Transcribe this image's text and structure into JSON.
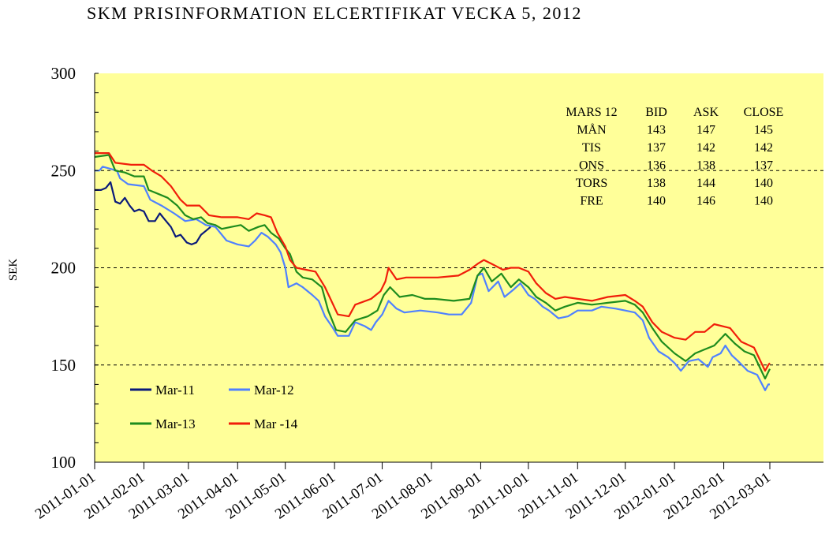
{
  "chart_data": {
    "type": "line",
    "title": "SKM PRISINFORMATION ELCERTIFIKAT VECKA 5, 2012",
    "ylabel": "SEK",
    "xlabel": "",
    "ylim": [
      100,
      300
    ],
    "yticks": [
      "100",
      "150",
      "200",
      "250",
      "300"
    ],
    "xticks": [
      "2011-01-01",
      "2011-02-01",
      "2011-03-01",
      "2011-04-01",
      "2011-05-01",
      "2011-06-01",
      "2011-07-01",
      "2011-08-01",
      "2011-09-01",
      "2011-10-01",
      "2011-11-01",
      "2011-12-01",
      "2012-01-01",
      "2012-02-01",
      "2012-03-01"
    ],
    "grid": "dashed horizontal at 150, 200, 250",
    "background": "#FFFF99",
    "legend_position": "bottom-left",
    "series": [
      {
        "name": "Mar-11",
        "color": "#0A1A7A",
        "points": [
          [
            "2011-01-01",
            240
          ],
          [
            "2011-01-05",
            240
          ],
          [
            "2011-01-08",
            241
          ],
          [
            "2011-01-11",
            244
          ],
          [
            "2011-01-14",
            234
          ],
          [
            "2011-01-17",
            233
          ],
          [
            "2011-01-20",
            236
          ],
          [
            "2011-01-23",
            232
          ],
          [
            "2011-01-26",
            229
          ],
          [
            "2011-01-29",
            230
          ],
          [
            "2011-02-01",
            229
          ],
          [
            "2011-02-04",
            224
          ],
          [
            "2011-02-08",
            224
          ],
          [
            "2011-02-11",
            228
          ],
          [
            "2011-02-14",
            225
          ],
          [
            "2011-02-18",
            221
          ],
          [
            "2011-02-21",
            216
          ],
          [
            "2011-02-24",
            217
          ],
          [
            "2011-02-28",
            213
          ],
          [
            "2011-03-03",
            212
          ],
          [
            "2011-03-06",
            213
          ],
          [
            "2011-03-09",
            217
          ],
          [
            "2011-03-12",
            219
          ],
          [
            "2011-03-15",
            221
          ]
        ]
      },
      {
        "name": "Mar-12",
        "color": "#4F81FF",
        "points": [
          [
            "2011-01-01",
            250
          ],
          [
            "2011-01-04",
            250
          ],
          [
            "2011-01-06",
            252
          ],
          [
            "2011-01-15",
            250
          ],
          [
            "2011-01-17",
            246
          ],
          [
            "2011-01-22",
            243
          ],
          [
            "2011-02-01",
            242
          ],
          [
            "2011-02-05",
            235
          ],
          [
            "2011-02-12",
            232
          ],
          [
            "2011-02-20",
            228
          ],
          [
            "2011-02-27",
            224
          ],
          [
            "2011-03-06",
            225
          ],
          [
            "2011-03-12",
            222
          ],
          [
            "2011-03-18",
            221
          ],
          [
            "2011-03-25",
            214
          ],
          [
            "2011-04-01",
            212
          ],
          [
            "2011-04-08",
            211
          ],
          [
            "2011-04-12",
            214
          ],
          [
            "2011-04-16",
            218
          ],
          [
            "2011-04-20",
            216
          ],
          [
            "2011-04-25",
            212
          ],
          [
            "2011-04-28",
            208
          ],
          [
            "2011-05-01",
            200
          ],
          [
            "2011-05-03",
            190
          ],
          [
            "2011-05-08",
            192
          ],
          [
            "2011-05-12",
            190
          ],
          [
            "2011-05-18",
            186
          ],
          [
            "2011-05-22",
            183
          ],
          [
            "2011-05-26",
            175
          ],
          [
            "2011-05-31",
            169
          ],
          [
            "2011-06-03",
            165
          ],
          [
            "2011-06-10",
            165
          ],
          [
            "2011-06-14",
            172
          ],
          [
            "2011-06-20",
            170
          ],
          [
            "2011-06-24",
            168
          ],
          [
            "2011-06-27",
            172
          ],
          [
            "2011-07-01",
            176
          ],
          [
            "2011-07-05",
            183
          ],
          [
            "2011-07-10",
            179
          ],
          [
            "2011-07-15",
            177
          ],
          [
            "2011-07-25",
            178
          ],
          [
            "2011-08-05",
            177
          ],
          [
            "2011-08-12",
            176
          ],
          [
            "2011-08-20",
            176
          ],
          [
            "2011-08-26",
            182
          ],
          [
            "2011-08-30",
            196
          ],
          [
            "2011-09-02",
            197
          ],
          [
            "2011-09-06",
            188
          ],
          [
            "2011-09-12",
            193
          ],
          [
            "2011-09-16",
            185
          ],
          [
            "2011-09-22",
            189
          ],
          [
            "2011-09-26",
            192
          ],
          [
            "2011-10-01",
            186
          ],
          [
            "2011-10-05",
            184
          ],
          [
            "2011-10-10",
            180
          ],
          [
            "2011-10-14",
            178
          ],
          [
            "2011-10-20",
            174
          ],
          [
            "2011-10-26",
            175
          ],
          [
            "2011-11-01",
            178
          ],
          [
            "2011-11-10",
            178
          ],
          [
            "2011-11-16",
            180
          ],
          [
            "2011-11-25",
            179
          ],
          [
            "2011-12-01",
            178
          ],
          [
            "2011-12-07",
            177
          ],
          [
            "2011-12-12",
            173
          ],
          [
            "2011-12-16",
            164
          ],
          [
            "2011-12-22",
            157
          ],
          [
            "2011-12-28",
            154
          ],
          [
            "2012-01-01",
            151
          ],
          [
            "2012-01-05",
            147
          ],
          [
            "2012-01-10",
            152
          ],
          [
            "2012-01-16",
            153
          ],
          [
            "2012-01-22",
            149
          ],
          [
            "2012-01-25",
            154
          ],
          [
            "2012-01-30",
            156
          ],
          [
            "2012-02-02",
            160
          ],
          [
            "2012-02-06",
            155
          ],
          [
            "2012-02-10",
            152
          ],
          [
            "2012-02-16",
            147
          ],
          [
            "2012-02-22",
            145
          ],
          [
            "2012-02-27",
            137
          ],
          [
            "2012-02-29",
            140
          ],
          [
            "2012-03-01",
            140
          ]
        ]
      },
      {
        "name": "Mar-13",
        "color": "#1E8C1E",
        "points": [
          [
            "2011-01-01",
            257
          ],
          [
            "2011-01-10",
            258
          ],
          [
            "2011-01-14",
            250
          ],
          [
            "2011-01-20",
            249
          ],
          [
            "2011-01-26",
            247
          ],
          [
            "2011-02-01",
            247
          ],
          [
            "2011-02-04",
            240
          ],
          [
            "2011-02-10",
            238
          ],
          [
            "2011-02-16",
            236
          ],
          [
            "2011-02-22",
            232
          ],
          [
            "2011-02-27",
            227
          ],
          [
            "2011-03-04",
            225
          ],
          [
            "2011-03-09",
            226
          ],
          [
            "2011-03-13",
            223
          ],
          [
            "2011-03-18",
            222
          ],
          [
            "2011-03-22",
            220
          ],
          [
            "2011-03-28",
            221
          ],
          [
            "2011-04-03",
            222
          ],
          [
            "2011-04-08",
            219
          ],
          [
            "2011-04-14",
            221
          ],
          [
            "2011-04-18",
            222
          ],
          [
            "2011-04-22",
            218
          ],
          [
            "2011-04-27",
            215
          ],
          [
            "2011-05-01",
            210
          ],
          [
            "2011-05-04",
            207
          ],
          [
            "2011-05-08",
            198
          ],
          [
            "2011-05-12",
            195
          ],
          [
            "2011-05-18",
            194
          ],
          [
            "2011-05-24",
            190
          ],
          [
            "2011-05-28",
            178
          ],
          [
            "2011-06-02",
            168
          ],
          [
            "2011-06-08",
            167
          ],
          [
            "2011-06-14",
            173
          ],
          [
            "2011-06-22",
            175
          ],
          [
            "2011-06-28",
            178
          ],
          [
            "2011-07-02",
            186
          ],
          [
            "2011-07-06",
            190
          ],
          [
            "2011-07-12",
            185
          ],
          [
            "2011-07-20",
            186
          ],
          [
            "2011-07-28",
            184
          ],
          [
            "2011-08-03",
            184
          ],
          [
            "2011-08-15",
            183
          ],
          [
            "2011-08-25",
            184
          ],
          [
            "2011-08-30",
            196
          ],
          [
            "2011-09-03",
            200
          ],
          [
            "2011-09-08",
            193
          ],
          [
            "2011-09-14",
            197
          ],
          [
            "2011-09-20",
            190
          ],
          [
            "2011-09-25",
            194
          ],
          [
            "2011-10-01",
            190
          ],
          [
            "2011-10-06",
            185
          ],
          [
            "2011-10-12",
            182
          ],
          [
            "2011-10-18",
            178
          ],
          [
            "2011-10-24",
            180
          ],
          [
            "2011-11-01",
            182
          ],
          [
            "2011-11-10",
            181
          ],
          [
            "2011-11-20",
            182
          ],
          [
            "2011-12-01",
            183
          ],
          [
            "2011-12-07",
            181
          ],
          [
            "2011-12-12",
            177
          ],
          [
            "2011-12-18",
            169
          ],
          [
            "2011-12-24",
            162
          ],
          [
            "2012-01-01",
            156
          ],
          [
            "2012-01-08",
            152
          ],
          [
            "2012-01-14",
            156
          ],
          [
            "2012-01-20",
            158
          ],
          [
            "2012-01-26",
            160
          ],
          [
            "2012-02-02",
            166
          ],
          [
            "2012-02-08",
            161
          ],
          [
            "2012-02-14",
            157
          ],
          [
            "2012-02-20",
            155
          ],
          [
            "2012-02-27",
            143
          ],
          [
            "2012-03-01",
            148
          ]
        ]
      },
      {
        "name": "Mar -14",
        "color": "#F01E0A",
        "points": [
          [
            "2011-01-01",
            259
          ],
          [
            "2011-01-10",
            259
          ],
          [
            "2011-01-14",
            254
          ],
          [
            "2011-01-24",
            253
          ],
          [
            "2011-02-01",
            253
          ],
          [
            "2011-02-06",
            250
          ],
          [
            "2011-02-12",
            247
          ],
          [
            "2011-02-18",
            242
          ],
          [
            "2011-02-24",
            235
          ],
          [
            "2011-02-28",
            232
          ],
          [
            "2011-03-08",
            232
          ],
          [
            "2011-03-14",
            227
          ],
          [
            "2011-03-22",
            226
          ],
          [
            "2011-04-01",
            226
          ],
          [
            "2011-04-08",
            225
          ],
          [
            "2011-04-13",
            228
          ],
          [
            "2011-04-18",
            227
          ],
          [
            "2011-04-22",
            226
          ],
          [
            "2011-04-26",
            218
          ],
          [
            "2011-05-01",
            211
          ],
          [
            "2011-05-04",
            204
          ],
          [
            "2011-05-08",
            200
          ],
          [
            "2011-05-14",
            199
          ],
          [
            "2011-05-20",
            198
          ],
          [
            "2011-05-26",
            190
          ],
          [
            "2011-05-30",
            183
          ],
          [
            "2011-06-03",
            176
          ],
          [
            "2011-06-10",
            175
          ],
          [
            "2011-06-14",
            181
          ],
          [
            "2011-06-24",
            184
          ],
          [
            "2011-06-30",
            188
          ],
          [
            "2011-07-03",
            193
          ],
          [
            "2011-07-05",
            200
          ],
          [
            "2011-07-10",
            194
          ],
          [
            "2011-07-16",
            195
          ],
          [
            "2011-07-24",
            195
          ],
          [
            "2011-08-05",
            195
          ],
          [
            "2011-08-18",
            196
          ],
          [
            "2011-08-25",
            199
          ],
          [
            "2011-08-30",
            202
          ],
          [
            "2011-09-03",
            204
          ],
          [
            "2011-09-08",
            202
          ],
          [
            "2011-09-15",
            199
          ],
          [
            "2011-09-20",
            200
          ],
          [
            "2011-09-25",
            200
          ],
          [
            "2011-10-01",
            198
          ],
          [
            "2011-10-06",
            192
          ],
          [
            "2011-10-12",
            187
          ],
          [
            "2011-10-18",
            184
          ],
          [
            "2011-10-24",
            185
          ],
          [
            "2011-11-01",
            184
          ],
          [
            "2011-11-10",
            183
          ],
          [
            "2011-11-20",
            185
          ],
          [
            "2011-12-01",
            186
          ],
          [
            "2011-12-07",
            183
          ],
          [
            "2011-12-12",
            180
          ],
          [
            "2011-12-18",
            172
          ],
          [
            "2011-12-24",
            167
          ],
          [
            "2012-01-01",
            164
          ],
          [
            "2012-01-08",
            163
          ],
          [
            "2012-01-14",
            167
          ],
          [
            "2012-01-20",
            167
          ],
          [
            "2012-01-26",
            171
          ],
          [
            "2012-02-05",
            169
          ],
          [
            "2012-02-12",
            162
          ],
          [
            "2012-02-20",
            159
          ],
          [
            "2012-02-27",
            147
          ],
          [
            "2012-02-29",
            150
          ],
          [
            "2012-03-01",
            151
          ]
        ]
      }
    ],
    "price_table": {
      "headers": [
        "MARS 12",
        "BID",
        "ASK",
        "CLOSE"
      ],
      "rows": [
        [
          "MÅN",
          "143",
          "147",
          "145"
        ],
        [
          "TIS",
          "137",
          "142",
          "142"
        ],
        [
          "ONS",
          "136",
          "138",
          "137"
        ],
        [
          "TORS",
          "138",
          "144",
          "140"
        ],
        [
          "FRE",
          "140",
          "146",
          "140"
        ]
      ]
    }
  }
}
